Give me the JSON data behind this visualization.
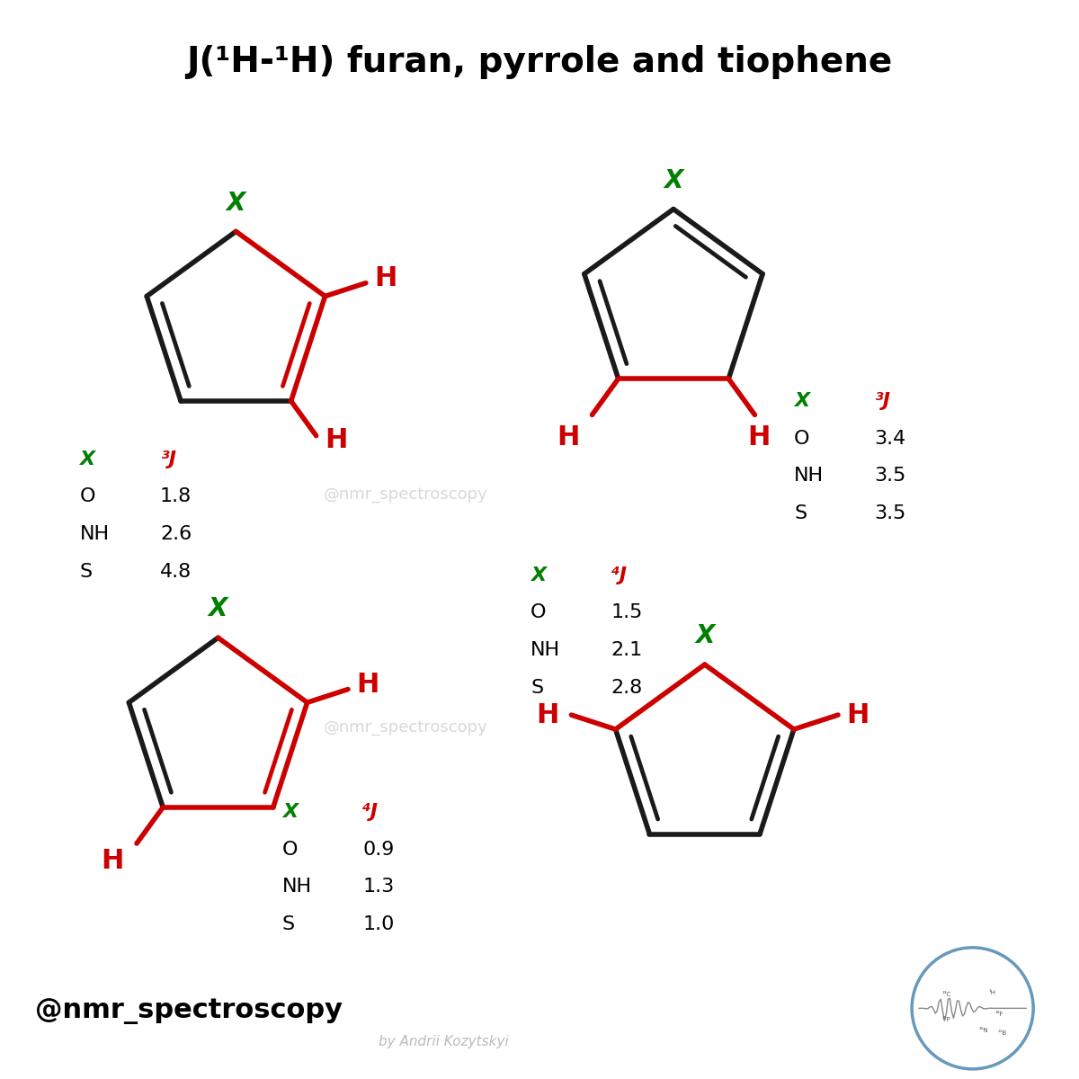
{
  "title": "J(¹H-¹H) furan, pyrrole and tiophene",
  "bg_color": "#ffffff",
  "green": "#008000",
  "red": "#cc0000",
  "black": "#1a1a1a",
  "watermark": "@nmr_spectroscopy",
  "watermark2": "by Andrii Kozytskyi",
  "handle_bold": "@nmr_spectroscopy",
  "table1": {
    "label": "X",
    "j_label": "³J",
    "rows": [
      [
        "O",
        "1.8"
      ],
      [
        "NH",
        "2.6"
      ],
      [
        "S",
        "4.8"
      ]
    ]
  },
  "table2": {
    "label": "X",
    "j_label": "³J",
    "rows": [
      [
        "O",
        "3.4"
      ],
      [
        "NH",
        "3.5"
      ],
      [
        "S",
        "3.5"
      ]
    ]
  },
  "table3": {
    "label": "X",
    "j_label": "⁴J",
    "rows": [
      [
        "O",
        "0.9"
      ],
      [
        "NH",
        "1.3"
      ],
      [
        "S",
        "1.0"
      ]
    ]
  },
  "table4": {
    "label": "X",
    "j_label": "⁴J",
    "rows": [
      [
        "O",
        "1.5"
      ],
      [
        "NH",
        "2.1"
      ],
      [
        "S",
        "2.8"
      ]
    ]
  }
}
